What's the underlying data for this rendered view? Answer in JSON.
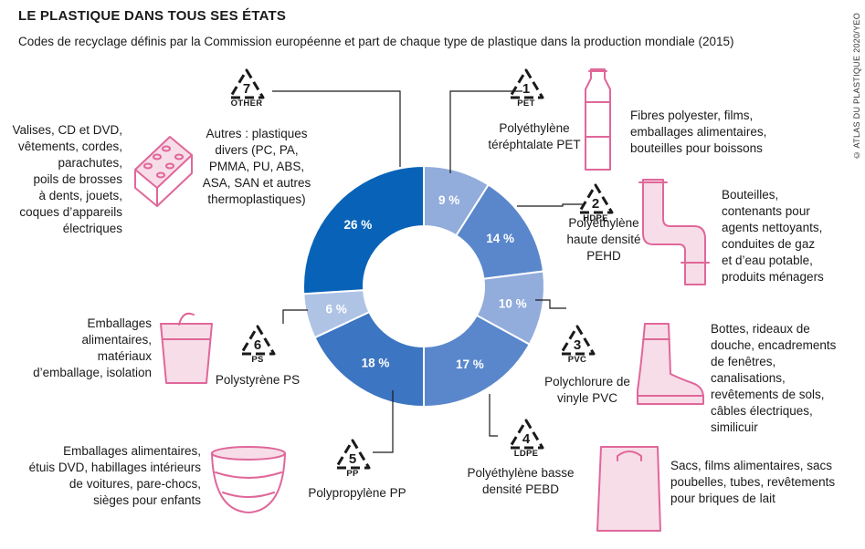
{
  "title": "LE PLASTIQUE DANS TOUS SES ÉTATS",
  "subtitle": "Codes de recyclage définis par la Commission européenne et part de chaque type de plastique dans la production mondiale (2015)",
  "credit": "© ATLAS DU PLASTIQUE 2020/YEO",
  "colors": {
    "series": [
      "#92ACDB",
      "#5A87CB",
      "#92ACDB",
      "#5A87CB",
      "#3C75C2",
      "#AFC3E5",
      "#0863B8"
    ],
    "leader": "#1a1a1a",
    "icon_stroke": "#E0679A",
    "icon_fill": "#F7DDE8"
  },
  "chart_data": {
    "type": "donut",
    "unit": "%",
    "categories": [
      "PET",
      "HDPE",
      "PVC",
      "LDPE",
      "PP",
      "PS",
      "OTHER"
    ],
    "values": [
      9,
      14,
      10,
      17,
      18,
      6,
      26
    ],
    "value_labels": [
      "9 %",
      "14 %",
      "10 %",
      "17 %",
      "18 %",
      "6 %",
      "26 %"
    ]
  },
  "types": [
    {
      "num": "1",
      "code": "PET",
      "name": "Polyéthylène\ntéréphtalate PET",
      "uses": "Fibres polyester, films,\nemballages alimentaires,\nbouteilles pour boissons",
      "icon": "bottle-icon"
    },
    {
      "num": "2",
      "code": "HDPE",
      "name": "Polyéthylène\nhaute densité\nPEHD",
      "uses": "Bouteilles,\ncontenants pour\nagents nettoyants,\nconduites de gaz\net d’eau potable,\nproduits ménagers",
      "icon": "pipe-icon"
    },
    {
      "num": "3",
      "code": "PVC",
      "name": "Polychlorure de\nvinyle PVC",
      "uses": "Bottes, rideaux de\ndouche, encadrements\nde fenêtres,\ncanalisations,\nrevêtements de sols,\ncâbles électriques,\nsimilicuir",
      "icon": "boot-icon"
    },
    {
      "num": "4",
      "code": "LDPE",
      "name": "Polyéthylène basse\ndensité PEBD",
      "uses": "Sacs, films alimentaires, sacs\npoubelles, tubes, revêtements\npour briques de lait",
      "icon": "bag-icon"
    },
    {
      "num": "5",
      "code": "PP",
      "name": "Polypropylène PP",
      "uses": "Emballages alimentaires,\nétuis DVD, habillages intérieurs\nde voitures, pare-chocs,\nsièges pour enfants",
      "icon": "bowl-icon"
    },
    {
      "num": "6",
      "code": "PS",
      "name": "Polystyrène PS",
      "uses": "Emballages\nalimentaires,\nmatériaux\nd’emballage, isolation",
      "icon": "cup-icon"
    },
    {
      "num": "7",
      "code": "OTHER",
      "name": "Autres : plastiques\ndivers (PC, PA,\nPMMA, PU, ABS,\nASA, SAN et autres\nthermoplastiques)",
      "uses": "Valises, CD et DVD,\nvêtements, cordes,\nparachutes,\npoils de brosses\nà dents, jouets,\ncoques d’appareils\nélectriques",
      "icon": "toy-brick-icon"
    }
  ]
}
